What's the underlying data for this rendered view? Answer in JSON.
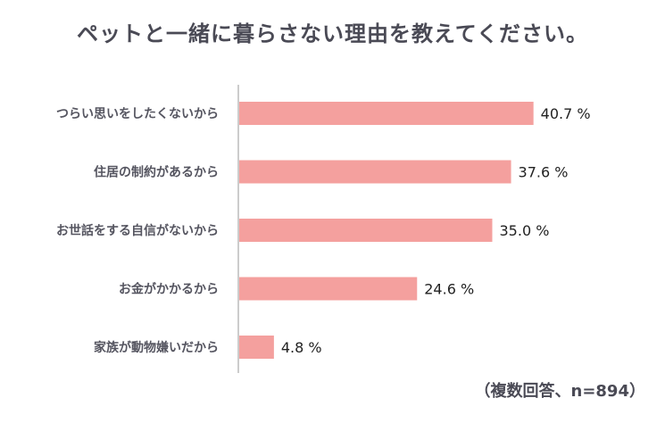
{
  "title": "ペットと一緒に暮らさない理由を教えてください。",
  "note": "（複数回答、n=894）",
  "colors": {
    "bar": "#f4a09e",
    "axis": "#999999",
    "text": "#4a4a55"
  },
  "chart_data": {
    "type": "bar",
    "orientation": "horizontal",
    "title": "ペットと一緒に暮らさない理由を教えてください。",
    "unit": "%",
    "categories": [
      "つらい思いをしたくないから",
      "住居の制約があるから",
      "お世話をする自信がないから",
      "お金がかかるから",
      "家族が動物嫌いだから"
    ],
    "values": [
      40.7,
      37.6,
      35.0,
      24.6,
      4.8
    ],
    "value_labels": [
      "40.7 %",
      "37.6 %",
      "35.0 %",
      "24.6 %",
      "4.8 %"
    ],
    "xlim": [
      0,
      45
    ],
    "grid": false,
    "legend": "none"
  }
}
